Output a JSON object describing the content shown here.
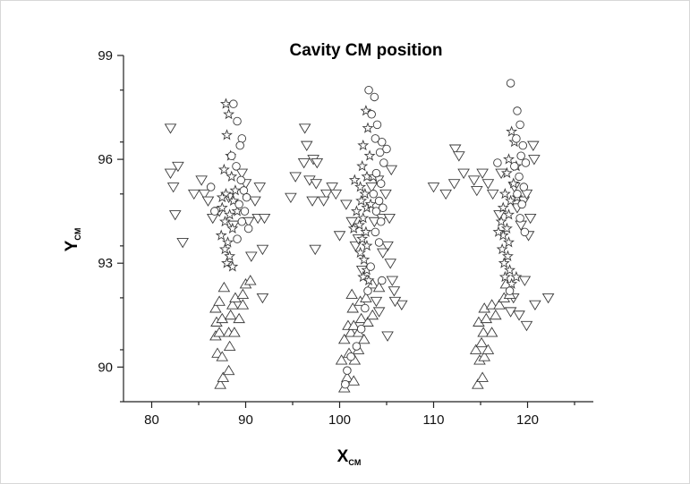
{
  "chart_data": {
    "type": "scatter",
    "title": "Cavity CM position",
    "xlabel": "X",
    "xlabel_sub": "CM",
    "ylabel": "Y",
    "ylabel_sub": "CM",
    "xlim": [
      77,
      127
    ],
    "ylim": [
      89,
      99
    ],
    "xticks": [
      80,
      90,
      100,
      110,
      120
    ],
    "yticks": [
      90,
      93,
      96,
      99
    ],
    "grid": false,
    "legend": "none",
    "series": [
      {
        "marker": "triangle-down",
        "points": [
          [
            82,
            96.9
          ],
          [
            82,
            95.6
          ],
          [
            82.3,
            95.2
          ],
          [
            82.5,
            94.4
          ],
          [
            82.8,
            95.8
          ],
          [
            83.3,
            93.6
          ],
          [
            84.5,
            95
          ],
          [
            85.3,
            95.4
          ],
          [
            85.6,
            95
          ],
          [
            86,
            94.8
          ],
          [
            86.5,
            94.3
          ],
          [
            87.2,
            94.5
          ],
          [
            88.2,
            94.9
          ],
          [
            88.7,
            94.1
          ],
          [
            89.6,
            95.6
          ],
          [
            90,
            95.3
          ],
          [
            90.3,
            94.2
          ],
          [
            90.6,
            93.2
          ],
          [
            91,
            94.8
          ],
          [
            91.5,
            95.2
          ],
          [
            91.3,
            94.3
          ],
          [
            91.8,
            93.4
          ],
          [
            92,
            94.3
          ],
          [
            91.8,
            92
          ],
          [
            94.8,
            94.9
          ],
          [
            95.3,
            95.5
          ],
          [
            96.2,
            95.9
          ],
          [
            96.3,
            96.9
          ],
          [
            96.5,
            96.4
          ],
          [
            96.8,
            95.4
          ],
          [
            97.2,
            96
          ],
          [
            97.6,
            95.9
          ],
          [
            97.5,
            95.3
          ],
          [
            97.1,
            94.8
          ],
          [
            97.4,
            93.4
          ],
          [
            98.6,
            95
          ],
          [
            98.3,
            94.8
          ],
          [
            99.2,
            95.2
          ],
          [
            99.6,
            95
          ],
          [
            100,
            93.8
          ],
          [
            100.7,
            94.7
          ],
          [
            101.3,
            94.2
          ],
          [
            101.7,
            93.5
          ],
          [
            102,
            93.7
          ],
          [
            102.4,
            92.8
          ],
          [
            103.4,
            95.2
          ],
          [
            103.7,
            94.2
          ],
          [
            104.1,
            95.4
          ],
          [
            104.5,
            94.3
          ],
          [
            104.9,
            95
          ],
          [
            105.3,
            94.3
          ],
          [
            105.5,
            95.7
          ],
          [
            105.1,
            93.5
          ],
          [
            104.6,
            93.3
          ],
          [
            105.4,
            93
          ],
          [
            105.6,
            92.5
          ],
          [
            105.8,
            92.2
          ],
          [
            106.6,
            91.8
          ],
          [
            105.9,
            91.9
          ],
          [
            103.9,
            91.9
          ],
          [
            104.2,
            91.6
          ],
          [
            105.1,
            90.9
          ],
          [
            110,
            95.2
          ],
          [
            111.3,
            95
          ],
          [
            112.2,
            95.3
          ],
          [
            112.3,
            96.3
          ],
          [
            112.7,
            96.1
          ],
          [
            113.2,
            95.6
          ],
          [
            114.3,
            95.4
          ],
          [
            115.2,
            95.6
          ],
          [
            115.8,
            95.3
          ],
          [
            114.6,
            95.1
          ],
          [
            116.3,
            95
          ],
          [
            117.2,
            95.6
          ],
          [
            118.6,
            95.2
          ],
          [
            118.9,
            94.6
          ],
          [
            119.6,
            94.8
          ],
          [
            119.9,
            95
          ],
          [
            119.3,
            94.1
          ],
          [
            120.3,
            94.3
          ],
          [
            120.1,
            93.8
          ],
          [
            120.6,
            96.4
          ],
          [
            120.7,
            96
          ],
          [
            117,
            94.4
          ],
          [
            119.7,
            92.5
          ],
          [
            118.5,
            92
          ],
          [
            118.2,
            91.6
          ],
          [
            119.1,
            91.5
          ],
          [
            119.9,
            91.2
          ],
          [
            120.8,
            91.8
          ],
          [
            122.2,
            92
          ]
        ]
      },
      {
        "marker": "triangle-up",
        "points": [
          [
            87.3,
            89.5
          ],
          [
            87.6,
            89.7
          ],
          [
            88.2,
            89.9
          ],
          [
            87,
            90.4
          ],
          [
            87.5,
            90.3
          ],
          [
            88.3,
            90.6
          ],
          [
            86.8,
            90.9
          ],
          [
            87.2,
            91
          ],
          [
            88.2,
            91
          ],
          [
            88.8,
            91
          ],
          [
            86.9,
            91.3
          ],
          [
            87.5,
            91.4
          ],
          [
            88.4,
            91.5
          ],
          [
            89.3,
            91.4
          ],
          [
            86.8,
            91.7
          ],
          [
            87.2,
            91.9
          ],
          [
            88.6,
            91.8
          ],
          [
            89.7,
            91.8
          ],
          [
            88.9,
            92
          ],
          [
            89.7,
            92.1
          ],
          [
            90,
            92.4
          ],
          [
            90.5,
            92.5
          ],
          [
            87.7,
            92.3
          ],
          [
            100.5,
            89.4
          ],
          [
            100.8,
            89.7
          ],
          [
            101.5,
            89.6
          ],
          [
            100.2,
            90.2
          ],
          [
            101,
            90.4
          ],
          [
            101.6,
            90.2
          ],
          [
            102,
            90.5
          ],
          [
            100.5,
            90.8
          ],
          [
            101.2,
            91
          ],
          [
            102,
            91
          ],
          [
            102.6,
            90.8
          ],
          [
            100.9,
            91.2
          ],
          [
            101.5,
            91.2
          ],
          [
            102.3,
            91.4
          ],
          [
            103,
            91.3
          ],
          [
            101.4,
            91.7
          ],
          [
            102.2,
            91.9
          ],
          [
            103.5,
            91.5
          ],
          [
            102.8,
            92
          ],
          [
            103.5,
            92.4
          ],
          [
            104.2,
            92.3
          ],
          [
            101.3,
            92.1
          ],
          [
            114.7,
            89.5
          ],
          [
            115.2,
            89.7
          ],
          [
            114.9,
            90.2
          ],
          [
            115.4,
            90.3
          ],
          [
            114.5,
            90.5
          ],
          [
            115.1,
            90.7
          ],
          [
            115.8,
            90.5
          ],
          [
            115.3,
            91
          ],
          [
            116.2,
            91
          ],
          [
            114.8,
            91.3
          ],
          [
            115.6,
            91.4
          ],
          [
            116.6,
            91.5
          ],
          [
            115.4,
            91.7
          ],
          [
            116.2,
            91.8
          ],
          [
            117,
            91.8
          ],
          [
            117.5,
            92
          ],
          [
            118.1,
            92.1
          ],
          [
            117.7,
            92.4
          ]
        ]
      },
      {
        "marker": "star",
        "points": [
          [
            87.9,
            97.6
          ],
          [
            88.2,
            97.3
          ],
          [
            88,
            96.7
          ],
          [
            88.4,
            96.1
          ],
          [
            87.7,
            95.7
          ],
          [
            88.5,
            95.5
          ],
          [
            87.9,
            95
          ],
          [
            88.7,
            94.8
          ],
          [
            87.5,
            94.6
          ],
          [
            88.3,
            94.4
          ],
          [
            87.8,
            94.2
          ],
          [
            88.6,
            94
          ],
          [
            87.4,
            93.8
          ],
          [
            88.1,
            93.6
          ],
          [
            87.8,
            93.4
          ],
          [
            88.3,
            93.2
          ],
          [
            88,
            93
          ],
          [
            88.6,
            92.9
          ],
          [
            87.5,
            94.9
          ],
          [
            88.9,
            95.1
          ],
          [
            89.1,
            94.5
          ],
          [
            102.8,
            97.4
          ],
          [
            103,
            96.9
          ],
          [
            102.5,
            96.4
          ],
          [
            103.2,
            96.1
          ],
          [
            102.4,
            95.8
          ],
          [
            102.9,
            95.5
          ],
          [
            102.2,
            95.2
          ],
          [
            102.7,
            95
          ],
          [
            102.3,
            94.8
          ],
          [
            102.9,
            94.6
          ],
          [
            101.8,
            94.5
          ],
          [
            102.5,
            94.3
          ],
          [
            102.1,
            94.1
          ],
          [
            102.8,
            93.9
          ],
          [
            102.4,
            93.7
          ],
          [
            102.9,
            93.5
          ],
          [
            102.2,
            93.3
          ],
          [
            102.6,
            93.1
          ],
          [
            102.9,
            92.8
          ],
          [
            102.5,
            92.6
          ],
          [
            103.1,
            92.5
          ],
          [
            101.6,
            95.4
          ],
          [
            103.3,
            94.7
          ],
          [
            101.5,
            94
          ],
          [
            103.6,
            95.5
          ],
          [
            118.3,
            96.8
          ],
          [
            118.6,
            96.5
          ],
          [
            118,
            96
          ],
          [
            118.8,
            95.8
          ],
          [
            117.8,
            95.6
          ],
          [
            118.5,
            95.3
          ],
          [
            117.6,
            95
          ],
          [
            118.2,
            94.8
          ],
          [
            117.4,
            94.6
          ],
          [
            118,
            94.4
          ],
          [
            117.2,
            94.2
          ],
          [
            117.8,
            94
          ],
          [
            117.4,
            93.8
          ],
          [
            118,
            93.6
          ],
          [
            117.3,
            93.4
          ],
          [
            117.9,
            93.2
          ],
          [
            117.5,
            93
          ],
          [
            118.1,
            92.8
          ],
          [
            117.6,
            92.6
          ],
          [
            118.3,
            92.4
          ],
          [
            118.8,
            92.6
          ],
          [
            116.9,
            93.9
          ],
          [
            118.9,
            94.9
          ]
        ]
      },
      {
        "marker": "circle",
        "points": [
          [
            88.7,
            97.6
          ],
          [
            89.1,
            97.1
          ],
          [
            89.6,
            96.6
          ],
          [
            89.4,
            96.4
          ],
          [
            88.5,
            96.1
          ],
          [
            89,
            95.8
          ],
          [
            89.5,
            95.4
          ],
          [
            89.8,
            95.1
          ],
          [
            90.1,
            94.9
          ],
          [
            89.3,
            94.7
          ],
          [
            89.9,
            94.5
          ],
          [
            89.6,
            94.2
          ],
          [
            90.3,
            94
          ],
          [
            86.3,
            95.2
          ],
          [
            86.7,
            94.5
          ],
          [
            89.1,
            93.7
          ],
          [
            103.1,
            98
          ],
          [
            103.7,
            97.8
          ],
          [
            103.4,
            97.3
          ],
          [
            104,
            97
          ],
          [
            103.8,
            96.6
          ],
          [
            104.5,
            96.5
          ],
          [
            104.3,
            96.2
          ],
          [
            105,
            96.3
          ],
          [
            104.7,
            95.9
          ],
          [
            103.9,
            95.6
          ],
          [
            104.4,
            95.3
          ],
          [
            103.6,
            95
          ],
          [
            104.2,
            94.8
          ],
          [
            103.9,
            94.5
          ],
          [
            104.6,
            94.6
          ],
          [
            104.4,
            94.2
          ],
          [
            103.8,
            93.9
          ],
          [
            104.2,
            93.6
          ],
          [
            103.3,
            92.9
          ],
          [
            104.5,
            92.5
          ],
          [
            103,
            92.2
          ],
          [
            102.7,
            91.7
          ],
          [
            102.3,
            91.1
          ],
          [
            101.8,
            90.6
          ],
          [
            101.2,
            90.3
          ],
          [
            100.8,
            89.9
          ],
          [
            100.6,
            89.5
          ],
          [
            118.2,
            98.2
          ],
          [
            118.9,
            97.4
          ],
          [
            119.2,
            97
          ],
          [
            118.8,
            96.6
          ],
          [
            119.5,
            96.4
          ],
          [
            119.3,
            96.1
          ],
          [
            119.8,
            95.9
          ],
          [
            118.6,
            95.8
          ],
          [
            119.1,
            95.5
          ],
          [
            119.6,
            95.2
          ],
          [
            118.9,
            95
          ],
          [
            119.4,
            94.7
          ],
          [
            119.2,
            94.3
          ],
          [
            119.7,
            93.9
          ],
          [
            116.8,
            95.9
          ],
          [
            118.1,
            92.2
          ]
        ]
      }
    ]
  }
}
